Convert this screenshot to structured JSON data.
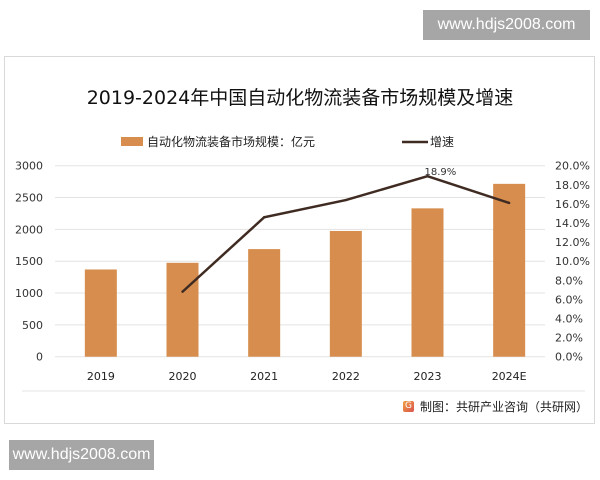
{
  "watermark_top": "www.hdjs2008.com",
  "watermark_bottom": "www.hdjs2008.com",
  "source": "制图：共研产业咨询（共研网）",
  "source_logo": "共研网",
  "colors": {
    "bar": "#d68d4d",
    "line": "#3f2b22",
    "grid": "#e3e3e3"
  },
  "chart_data": {
    "type": "bar+line",
    "title": "2019-2024年中国自动化物流装备市场规模及增速",
    "categories": [
      "2019",
      "2020",
      "2021",
      "2022",
      "2023",
      "2024E"
    ],
    "series": [
      {
        "name": "自动化物流装备市场规模：亿元",
        "type": "bar",
        "axis": "left",
        "values": [
          1370,
          1475,
          1690,
          1975,
          2330,
          2715
        ]
      },
      {
        "name": "增速",
        "type": "line",
        "axis": "right",
        "values": [
          null,
          6.8,
          14.6,
          16.4,
          18.9,
          16.1
        ]
      }
    ],
    "annotations": [
      {
        "category": "2023",
        "text": "18.9%"
      }
    ],
    "left_axis": {
      "ylim": [
        0,
        3000
      ],
      "ticks": [
        "0",
        "500",
        "1000",
        "1500",
        "2000",
        "2500",
        "3000"
      ]
    },
    "right_axis": {
      "ylim": [
        0,
        20
      ],
      "ticks": [
        "0.0%",
        "2.0%",
        "4.0%",
        "6.0%",
        "8.0%",
        "10.0%",
        "12.0%",
        "14.0%",
        "16.0%",
        "18.0%",
        "20.0%"
      ]
    },
    "grid": true,
    "legend": "top"
  }
}
